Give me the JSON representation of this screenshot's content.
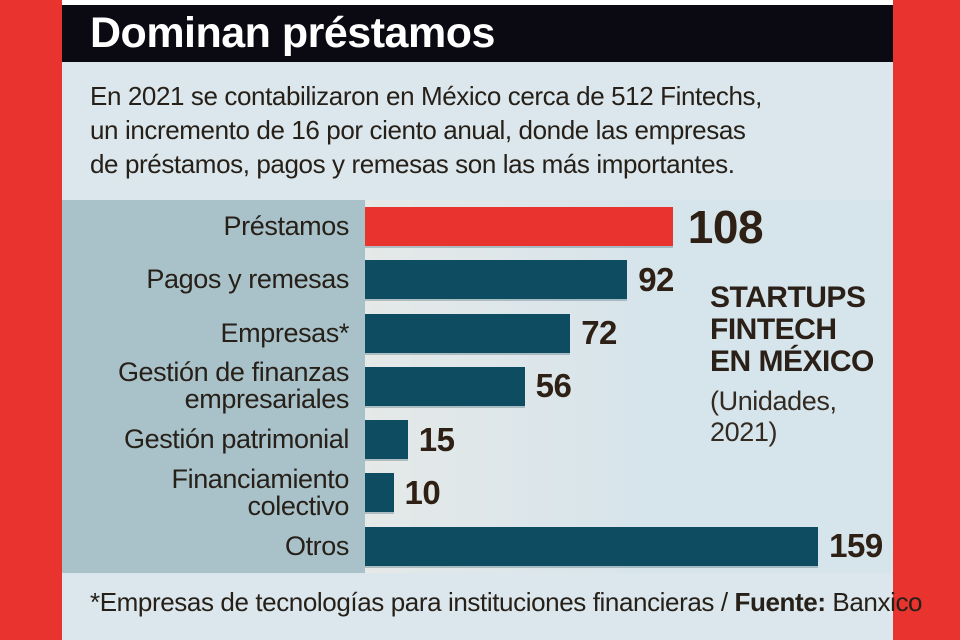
{
  "frame": {
    "accent_red": "#e8332e",
    "header_bg": "#0b0912",
    "panel_bg": "#dbe7ec",
    "label_column_bg": "#a9c2ca"
  },
  "header": {
    "title": "Dominan préstamos"
  },
  "intro": {
    "lines": [
      "En 2021 se contabilizaron en México cerca de 512 Fintechs,",
      "un incremento de 16 por ciento anual, donde las empresas",
      "de préstamos,  pagos y remesas son las más importantes."
    ]
  },
  "chart_data": {
    "type": "bar",
    "orientation": "horizontal",
    "title": "STARTUPS FINTECH EN MÉXICO",
    "subtitle": "(Unidades, 2021)",
    "categories": [
      "Préstamos",
      "Pagos y remesas",
      "Empresas*",
      "Gestión de finanzas\nempresariales",
      "Gestión patrimonial",
      "Financiamiento\ncolectivo",
      "Otros"
    ],
    "values": [
      108,
      92,
      72,
      56,
      15,
      10,
      159
    ],
    "highlight_index": 0,
    "colors": {
      "highlight_bar": "#e8332e",
      "bar": "#0e4d61"
    },
    "value_range": [
      0,
      159
    ],
    "grid": false,
    "value_labels": "end-of-bar"
  },
  "annotation": {
    "title_lines": [
      "STARTUPS",
      "FINTECH",
      "EN MÉXICO"
    ],
    "subtitle_lines": [
      "(Unidades,",
      "2021)"
    ]
  },
  "footer": {
    "note": "*Empresas de tecnologías para instituciones financieras / ",
    "source_label": "Fuente:",
    "source": " Banxico"
  }
}
